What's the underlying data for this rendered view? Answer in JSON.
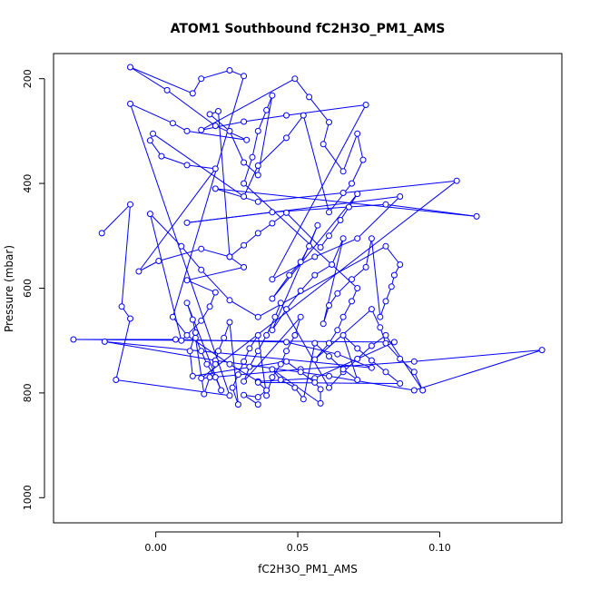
{
  "chart_data": {
    "type": "line",
    "title": "ATOM1 Southbound fC2H3O_PM1_AMS",
    "xlabel": "fC2H3O_PM1_AMS",
    "ylabel": "Pressure (mbar)",
    "xlim": [
      -0.036,
      0.143
    ],
    "ylim": [
      1048,
      152
    ],
    "y_reversed": true,
    "grid": false,
    "x_ticks": [
      0.0,
      0.05,
      0.1
    ],
    "x_tick_labels": [
      "0.00",
      "0.05",
      "0.10"
    ],
    "y_ticks": [
      200,
      400,
      600,
      800,
      1000
    ],
    "y_tick_labels": [
      "200",
      "400",
      "600",
      "800",
      "1000"
    ],
    "series_color": "#0000ff",
    "series": [
      {
        "style": "overplotted",
        "points": [
          [
            -0.019,
            495
          ],
          [
            -0.009,
            440
          ],
          [
            -0.012,
            635
          ],
          [
            -0.009,
            658
          ],
          [
            -0.014,
            775
          ],
          [
            0.026,
            805
          ],
          [
            -0.009,
            248
          ],
          [
            0.006,
            285
          ],
          [
            0.011,
            300
          ],
          [
            0.032,
            317
          ],
          [
            0.021,
            290
          ],
          [
            0.004,
            222
          ],
          [
            -0.009,
            178
          ],
          [
            0.013,
            228
          ],
          [
            0.016,
            200
          ],
          [
            0.026,
            184
          ],
          [
            0.031,
            195
          ],
          [
            0.006,
            655
          ],
          [
            0.011,
            690
          ],
          [
            0.026,
            745
          ],
          [
            0.036,
            778
          ],
          [
            0.056,
            772
          ],
          [
            0.084,
            703
          ],
          [
            -0.029,
            698
          ],
          [
            0.007,
            698
          ],
          [
            0.046,
            703
          ],
          [
            0.064,
            726
          ],
          [
            0.076,
            752
          ],
          [
            -0.018,
            702
          ],
          [
            0.021,
            738
          ],
          [
            0.061,
            768
          ],
          [
            0.091,
            795
          ],
          [
            0.136,
            718
          ],
          [
            0.091,
            740
          ],
          [
            0.051,
            755
          ],
          [
            0.016,
            772
          ],
          [
            0.106,
            395
          ],
          [
            0.066,
            418
          ],
          [
            0.036,
            435
          ],
          [
            0.021,
            410
          ],
          [
            0.113,
            463
          ],
          [
            0.081,
            440
          ],
          [
            0.041,
            455
          ],
          [
            0.011,
            475
          ],
          [
            0.086,
            425
          ],
          [
            0.071,
            505
          ],
          [
            0.056,
            540
          ],
          [
            0.041,
            583
          ],
          [
            0.074,
            250
          ],
          [
            0.046,
            270
          ],
          [
            0.031,
            282
          ],
          [
            0.016,
            298
          ],
          [
            0.049,
            200
          ],
          [
            0.054,
            235
          ],
          [
            0.061,
            283
          ],
          [
            0.059,
            325
          ],
          [
            0.066,
            377
          ],
          [
            0.071,
            305
          ],
          [
            0.073,
            355
          ],
          [
            0.069,
            400
          ],
          [
            0.061,
            455
          ],
          [
            0.052,
            270
          ],
          [
            0.046,
            313
          ],
          [
            0.036,
            366
          ],
          [
            0.031,
            425
          ],
          [
            -0.001,
            305
          ],
          [
            -0.002,
            318
          ],
          [
            0.002,
            348
          ],
          [
            0.011,
            365
          ],
          [
            0.021,
            372
          ],
          [
            -0.006,
            568
          ],
          [
            0.001,
            548
          ],
          [
            0.016,
            525
          ],
          [
            0.026,
            540
          ],
          [
            0.031,
            560
          ],
          [
            0.011,
            585
          ],
          [
            0.021,
            608
          ],
          [
            0.019,
            635
          ],
          [
            0.016,
            662
          ],
          [
            0.009,
            700
          ],
          [
            -0.002,
            458
          ],
          [
            0.009,
            520
          ],
          [
            0.016,
            565
          ],
          [
            0.026,
            623
          ],
          [
            0.036,
            655
          ],
          [
            0.081,
            520
          ],
          [
            0.086,
            555
          ],
          [
            0.084,
            575
          ],
          [
            0.083,
            597
          ],
          [
            0.081,
            625
          ],
          [
            0.079,
            655
          ],
          [
            0.076,
            505
          ],
          [
            0.074,
            560
          ],
          [
            0.069,
            583
          ],
          [
            0.064,
            610
          ],
          [
            0.061,
            633
          ],
          [
            0.059,
            668
          ],
          [
            0.066,
            505
          ],
          [
            0.062,
            555
          ],
          [
            0.056,
            575
          ],
          [
            0.051,
            605
          ],
          [
            0.046,
            640
          ],
          [
            0.041,
            680
          ],
          [
            0.057,
            480
          ],
          [
            0.054,
            520
          ],
          [
            0.051,
            550
          ],
          [
            0.047,
            575
          ],
          [
            0.041,
            620
          ],
          [
            0.071,
            420
          ],
          [
            0.068,
            445
          ],
          [
            0.065,
            470
          ],
          [
            0.061,
            500
          ],
          [
            0.058,
            522
          ],
          [
            0.046,
            456
          ],
          [
            0.041,
            476
          ],
          [
            0.036,
            495
          ],
          [
            0.031,
            518
          ],
          [
            0.026,
            540
          ],
          [
            0.022,
            262
          ],
          [
            0.019,
            268
          ],
          [
            0.026,
            300
          ],
          [
            0.031,
            360
          ],
          [
            0.036,
            384
          ],
          [
            0.041,
            232
          ],
          [
            0.039,
            260
          ],
          [
            0.036,
            300
          ],
          [
            0.034,
            350
          ],
          [
            0.031,
            400
          ],
          [
            0.071,
            600
          ],
          [
            0.069,
            625
          ],
          [
            0.066,
            655
          ],
          [
            0.064,
            680
          ],
          [
            0.061,
            705
          ],
          [
            0.056,
            736
          ],
          [
            0.076,
            640
          ],
          [
            0.079,
            675
          ],
          [
            0.081,
            705
          ],
          [
            0.086,
            735
          ],
          [
            0.091,
            760
          ],
          [
            0.094,
            795
          ],
          [
            0.081,
            690
          ],
          [
            0.076,
            710
          ],
          [
            0.071,
            735
          ],
          [
            0.066,
            760
          ],
          [
            0.061,
            790
          ],
          [
            0.044,
            628
          ],
          [
            0.042,
            655
          ],
          [
            0.039,
            690
          ],
          [
            0.036,
            720
          ],
          [
            0.033,
            750
          ],
          [
            0.031,
            778
          ],
          [
            0.051,
            655
          ],
          [
            0.049,
            690
          ],
          [
            0.046,
            720
          ],
          [
            0.044,
            745
          ],
          [
            0.041,
            770
          ],
          [
            0.039,
            805
          ],
          [
            0.036,
            690
          ],
          [
            0.033,
            715
          ],
          [
            0.031,
            740
          ],
          [
            0.029,
            765
          ],
          [
            0.027,
            790
          ],
          [
            0.029,
            822
          ],
          [
            0.026,
            665
          ],
          [
            0.024,
            695
          ],
          [
            0.022,
            720
          ],
          [
            0.021,
            745
          ],
          [
            0.019,
            770
          ],
          [
            0.017,
            802
          ],
          [
            0.014,
            695
          ],
          [
            0.016,
            720
          ],
          [
            0.018,
            745
          ],
          [
            0.021,
            770
          ],
          [
            0.023,
            795
          ],
          [
            0.011,
            628
          ],
          [
            0.013,
            660
          ],
          [
            0.014,
            685
          ],
          [
            0.012,
            720
          ],
          [
            0.013,
            768
          ],
          [
            0.046,
            740
          ],
          [
            0.051,
            760
          ],
          [
            0.056,
            780
          ],
          [
            0.058,
            793
          ],
          [
            0.058,
            820
          ],
          [
            0.041,
            755
          ],
          [
            0.044,
            775
          ],
          [
            0.049,
            790
          ],
          [
            0.052,
            812
          ],
          [
            0.056,
            705
          ],
          [
            0.061,
            730
          ],
          [
            0.066,
            755
          ],
          [
            0.071,
            775
          ],
          [
            0.066,
            690
          ],
          [
            0.071,
            715
          ],
          [
            0.076,
            738
          ],
          [
            0.081,
            760
          ],
          [
            0.086,
            782
          ],
          [
            0.036,
            780
          ],
          [
            0.039,
            795
          ],
          [
            0.036,
            808
          ],
          [
            0.031,
            804
          ],
          [
            0.036,
            822
          ]
        ]
      }
    ]
  }
}
